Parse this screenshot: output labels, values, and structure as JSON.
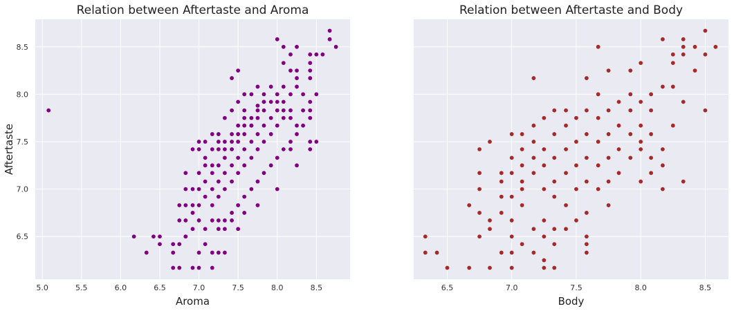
{
  "chart_data": [
    {
      "type": "scatter",
      "title": "Relation between Aftertaste and Aroma",
      "xlabel": "Aroma",
      "ylabel": "Aftertaste",
      "xlim": [
        4.91,
        8.93
      ],
      "ylim": [
        6.05,
        8.79
      ],
      "xticks": [
        "5.0",
        "5.5",
        "6.0",
        "6.5",
        "7.0",
        "7.5",
        "8.0",
        "8.5"
      ],
      "yticks": [
        "6.5",
        "7.0",
        "7.5",
        "8.0",
        "8.5"
      ],
      "grid": true,
      "color": "#800080",
      "background": "#eaeaf2",
      "points": [
        [
          5.08,
          7.83
        ],
        [
          6.17,
          6.5
        ],
        [
          6.33,
          6.33
        ],
        [
          6.42,
          6.5
        ],
        [
          6.5,
          6.5
        ],
        [
          6.5,
          6.42
        ],
        [
          6.67,
          6.42
        ],
        [
          6.67,
          6.33
        ],
        [
          6.67,
          6.17
        ],
        [
          6.75,
          6.42
        ],
        [
          6.75,
          6.17
        ],
        [
          6.83,
          6.5
        ],
        [
          6.92,
          6.17
        ],
        [
          7.0,
          6.17
        ],
        [
          7.17,
          6.17
        ],
        [
          7.17,
          6.33
        ],
        [
          7.25,
          6.33
        ],
        [
          7.33,
          6.33
        ],
        [
          6.75,
          6.83
        ],
        [
          6.75,
          6.67
        ],
        [
          6.83,
          6.67
        ],
        [
          6.83,
          7.0
        ],
        [
          6.83,
          6.83
        ],
        [
          6.83,
          7.17
        ],
        [
          6.92,
          7.42
        ],
        [
          7.0,
          7.42
        ],
        [
          6.92,
          6.83
        ],
        [
          6.92,
          7.0
        ],
        [
          7.0,
          7.5
        ],
        [
          7.42,
          8.17
        ],
        [
          7.5,
          8.25
        ],
        [
          7.58,
          8.0
        ],
        [
          7.75,
          7.88
        ],
        [
          7.83,
          7.92
        ],
        [
          8.0,
          8.58
        ],
        [
          8.08,
          8.5
        ],
        [
          8.08,
          8.33
        ],
        [
          8.17,
          8.42
        ],
        [
          8.17,
          8.25
        ],
        [
          8.25,
          8.5
        ],
        [
          8.25,
          8.25
        ],
        [
          8.25,
          8.17
        ],
        [
          8.42,
          8.42
        ],
        [
          8.42,
          8.33
        ],
        [
          8.42,
          8.25
        ],
        [
          8.42,
          8.17
        ],
        [
          8.5,
          8.0
        ],
        [
          8.58,
          8.42
        ],
        [
          8.67,
          8.67
        ],
        [
          8.67,
          8.58
        ],
        [
          8.75,
          8.5
        ],
        [
          8.5,
          8.42
        ],
        [
          8.42,
          7.5
        ],
        [
          8.42,
          7.42
        ],
        [
          8.5,
          7.5
        ],
        [
          8.17,
          7.42
        ],
        [
          8.25,
          7.25
        ],
        [
          8.0,
          7.0
        ],
        [
          7.75,
          6.83
        ],
        [
          7.58,
          6.75
        ],
        [
          7.5,
          6.58
        ],
        [
          7.42,
          6.67
        ],
        [
          7.33,
          6.58
        ],
        [
          7.25,
          6.58
        ],
        [
          7.08,
          6.42
        ],
        [
          7.0,
          6.33
        ],
        [
          6.83,
          6.5
        ],
        [
          6.92,
          6.58
        ],
        [
          7.0,
          6.67
        ],
        [
          7.08,
          6.58
        ],
        [
          7.17,
          6.67
        ],
        [
          7.25,
          6.67
        ],
        [
          7.33,
          6.67
        ],
        [
          7.42,
          6.75
        ],
        [
          7.5,
          6.83
        ],
        [
          7.58,
          6.92
        ],
        [
          7.67,
          7.0
        ],
        [
          7.75,
          7.08
        ],
        [
          7.83,
          7.17
        ],
        [
          7.92,
          7.25
        ],
        [
          8.0,
          7.33
        ],
        [
          8.08,
          7.42
        ],
        [
          8.17,
          7.5
        ],
        [
          8.25,
          7.58
        ],
        [
          8.33,
          7.67
        ],
        [
          8.42,
          7.75
        ],
        [
          8.42,
          7.83
        ],
        [
          8.42,
          7.92
        ],
        [
          8.33,
          8.0
        ],
        [
          8.25,
          8.08
        ],
        [
          8.17,
          8.0
        ],
        [
          8.08,
          7.92
        ],
        [
          8.0,
          7.83
        ],
        [
          7.92,
          7.75
        ],
        [
          7.83,
          7.67
        ],
        [
          7.75,
          7.58
        ],
        [
          7.67,
          7.5
        ],
        [
          7.58,
          7.42
        ],
        [
          7.5,
          7.33
        ],
        [
          7.42,
          7.25
        ],
        [
          7.33,
          7.17
        ],
        [
          7.25,
          7.08
        ],
        [
          7.17,
          7.0
        ],
        [
          7.08,
          6.92
        ],
        [
          7.0,
          6.83
        ],
        [
          6.92,
          6.75
        ],
        [
          7.08,
          7.25
        ],
        [
          7.17,
          7.42
        ],
        [
          7.25,
          7.58
        ],
        [
          7.33,
          7.75
        ],
        [
          7.42,
          7.83
        ],
        [
          7.5,
          7.92
        ],
        [
          7.58,
          7.83
        ],
        [
          7.67,
          8.0
        ],
        [
          7.75,
          8.08
        ],
        [
          7.83,
          8.0
        ],
        [
          7.92,
          8.08
        ],
        [
          8.0,
          8.0
        ],
        [
          8.08,
          8.08
        ],
        [
          7.08,
          7.5
        ],
        [
          7.17,
          7.58
        ],
        [
          7.25,
          7.5
        ],
        [
          7.33,
          7.5
        ],
        [
          7.42,
          7.58
        ],
        [
          7.5,
          7.67
        ],
        [
          7.58,
          7.75
        ],
        [
          7.67,
          7.67
        ],
        [
          7.75,
          7.75
        ],
        [
          7.83,
          7.83
        ],
        [
          7.92,
          7.92
        ],
        [
          8.0,
          7.92
        ],
        [
          8.08,
          7.83
        ],
        [
          8.17,
          7.75
        ],
        [
          8.25,
          7.67
        ],
        [
          8.33,
          7.83
        ],
        [
          7.17,
          6.83
        ],
        [
          7.25,
          6.92
        ],
        [
          7.33,
          7.0
        ],
        [
          7.42,
          7.08
        ],
        [
          7.5,
          7.17
        ],
        [
          7.58,
          7.25
        ],
        [
          7.67,
          7.33
        ],
        [
          7.75,
          7.42
        ],
        [
          7.83,
          7.5
        ],
        [
          7.92,
          7.58
        ],
        [
          8.0,
          7.67
        ],
        [
          8.08,
          7.75
        ],
        [
          8.17,
          7.83
        ],
        [
          7.08,
          7.08
        ],
        [
          7.17,
          7.17
        ],
        [
          7.25,
          7.25
        ],
        [
          7.33,
          7.33
        ],
        [
          7.42,
          7.42
        ],
        [
          7.5,
          7.5
        ],
        [
          7.58,
          7.58
        ],
        [
          7.67,
          7.67
        ],
        [
          7.0,
          7.0
        ],
        [
          7.0,
          7.17
        ],
        [
          7.08,
          7.33
        ],
        [
          7.17,
          7.25
        ],
        [
          7.25,
          7.42
        ],
        [
          7.33,
          7.42
        ],
        [
          7.42,
          7.5
        ],
        [
          7.5,
          7.58
        ],
        [
          7.58,
          7.67
        ],
        [
          7.67,
          7.75
        ],
        [
          7.75,
          7.83
        ],
        [
          7.83,
          7.92
        ]
      ]
    },
    {
      "type": "scatter",
      "title": "Relation between Aftertaste and Body",
      "xlabel": "Body",
      "ylabel": "",
      "xlim": [
        6.24,
        8.68
      ],
      "ylim": [
        6.05,
        8.79
      ],
      "xticks": [
        "6.5",
        "7.0",
        "7.5",
        "8.0",
        "8.5"
      ],
      "yticks": [],
      "grid": true,
      "color": "#a52a2a",
      "background": "#eaeaf2",
      "points": [
        [
          6.33,
          6.5
        ],
        [
          6.33,
          6.33
        ],
        [
          6.42,
          6.33
        ],
        [
          6.5,
          6.17
        ],
        [
          6.67,
          6.17
        ],
        [
          6.67,
          6.83
        ],
        [
          6.75,
          6.5
        ],
        [
          6.75,
          6.75
        ],
        [
          6.75,
          7.0
        ],
        [
          6.75,
          7.17
        ],
        [
          6.75,
          7.42
        ],
        [
          6.83,
          6.17
        ],
        [
          6.83,
          6.58
        ],
        [
          6.83,
          6.67
        ],
        [
          6.83,
          7.5
        ],
        [
          6.92,
          6.33
        ],
        [
          6.92,
          6.75
        ],
        [
          6.92,
          6.92
        ],
        [
          7.0,
          6.17
        ],
        [
          7.0,
          6.33
        ],
        [
          7.0,
          6.5
        ],
        [
          7.0,
          6.67
        ],
        [
          7.0,
          7.33
        ],
        [
          7.0,
          7.58
        ],
        [
          7.08,
          6.42
        ],
        [
          7.08,
          6.83
        ],
        [
          7.08,
          7.25
        ],
        [
          7.17,
          6.33
        ],
        [
          7.17,
          8.17
        ],
        [
          7.25,
          6.25
        ],
        [
          7.25,
          6.17
        ],
        [
          7.25,
          6.67
        ],
        [
          7.33,
          6.17
        ],
        [
          7.33,
          6.58
        ],
        [
          7.42,
          7.83
        ],
        [
          7.5,
          7.5
        ],
        [
          7.58,
          6.5
        ],
        [
          7.58,
          6.42
        ],
        [
          7.58,
          6.33
        ],
        [
          7.58,
          8.17
        ],
        [
          7.67,
          8.5
        ],
        [
          7.75,
          6.83
        ],
        [
          7.75,
          8.25
        ],
        [
          7.92,
          8.25
        ],
        [
          8.0,
          8.33
        ],
        [
          8.0,
          7.08
        ],
        [
          8.08,
          7.17
        ],
        [
          8.17,
          7.0
        ],
        [
          8.17,
          7.25
        ],
        [
          8.17,
          7.42
        ],
        [
          8.17,
          8.08
        ],
        [
          8.17,
          8.58
        ],
        [
          8.25,
          8.08
        ],
        [
          8.25,
          8.33
        ],
        [
          8.25,
          8.42
        ],
        [
          8.25,
          7.67
        ],
        [
          8.33,
          8.58
        ],
        [
          8.33,
          8.5
        ],
        [
          8.33,
          8.42
        ],
        [
          8.33,
          7.92
        ],
        [
          8.33,
          7.08
        ],
        [
          8.42,
          8.5
        ],
        [
          8.42,
          8.25
        ],
        [
          8.5,
          8.67
        ],
        [
          8.5,
          8.42
        ],
        [
          8.5,
          7.83
        ],
        [
          8.58,
          8.5
        ],
        [
          7.08,
          7.0
        ],
        [
          7.08,
          7.08
        ],
        [
          7.08,
          7.42
        ],
        [
          7.08,
          7.58
        ],
        [
          7.17,
          7.17
        ],
        [
          7.17,
          7.33
        ],
        [
          7.17,
          7.5
        ],
        [
          7.17,
          7.67
        ],
        [
          7.25,
          7.0
        ],
        [
          7.25,
          7.25
        ],
        [
          7.25,
          7.42
        ],
        [
          7.25,
          7.75
        ],
        [
          7.33,
          6.92
        ],
        [
          7.33,
          7.08
        ],
        [
          7.33,
          7.33
        ],
        [
          7.33,
          7.58
        ],
        [
          7.33,
          7.83
        ],
        [
          7.42,
          6.83
        ],
        [
          7.42,
          7.17
        ],
        [
          7.42,
          7.42
        ],
        [
          7.42,
          7.67
        ],
        [
          7.5,
          7.0
        ],
        [
          7.5,
          7.25
        ],
        [
          7.5,
          7.75
        ],
        [
          7.58,
          6.75
        ],
        [
          7.58,
          7.08
        ],
        [
          7.58,
          7.33
        ],
        [
          7.58,
          7.58
        ],
        [
          7.58,
          7.83
        ],
        [
          7.67,
          7.0
        ],
        [
          7.67,
          7.25
        ],
        [
          7.67,
          7.5
        ],
        [
          7.67,
          7.75
        ],
        [
          7.67,
          8.0
        ],
        [
          7.75,
          7.08
        ],
        [
          7.75,
          7.33
        ],
        [
          7.75,
          7.58
        ],
        [
          7.75,
          7.83
        ],
        [
          7.83,
          7.17
        ],
        [
          7.83,
          7.42
        ],
        [
          7.83,
          7.67
        ],
        [
          7.83,
          7.92
        ],
        [
          7.92,
          7.33
        ],
        [
          7.92,
          7.58
        ],
        [
          7.92,
          7.83
        ],
        [
          7.92,
          8.0
        ],
        [
          8.0,
          7.42
        ],
        [
          8.0,
          7.67
        ],
        [
          8.0,
          7.92
        ],
        [
          8.08,
          7.58
        ],
        [
          8.08,
          7.83
        ],
        [
          8.08,
          8.0
        ],
        [
          8.0,
          7.5
        ],
        [
          8.08,
          7.33
        ],
        [
          6.92,
          7.08
        ],
        [
          6.92,
          7.17
        ],
        [
          7.0,
          7.17
        ],
        [
          7.0,
          6.92
        ],
        [
          7.17,
          6.58
        ],
        [
          7.25,
          6.5
        ],
        [
          7.33,
          6.42
        ],
        [
          7.42,
          6.58
        ],
        [
          7.5,
          6.67
        ]
      ]
    }
  ]
}
